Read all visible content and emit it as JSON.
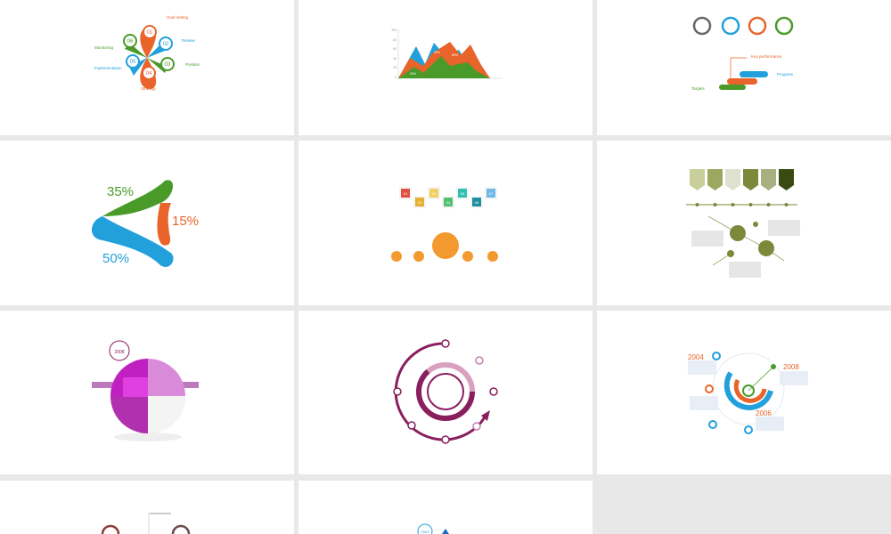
{
  "cards": [
    {
      "labels": [
        "Goal setting",
        "Review",
        "Position",
        "Strategy",
        "Implementation",
        "Monitoring"
      ],
      "nums": [
        "01",
        "02",
        "03",
        "04",
        "05",
        "06"
      ]
    },
    {
      "chart": {
        "ticks": [
          "100",
          "80",
          "60",
          "40",
          "20",
          "0"
        ],
        "labels": [
          "50%",
          "60%",
          "20%"
        ]
      }
    },
    {
      "labels": [
        "Key performance",
        "Progress",
        "Targets"
      ]
    },
    {
      "percents": [
        "35%",
        "15%",
        "50%"
      ]
    },
    {
      "nums": [
        "01",
        "02",
        "03",
        "04",
        "05",
        "06",
        "07"
      ]
    },
    {},
    {
      "year": "2008"
    },
    {},
    {
      "years": [
        "2004",
        "2008",
        "2006"
      ]
    },
    {},
    {
      "year": "2003"
    }
  ],
  "colors": {
    "orange": "#e8642a",
    "blue": "#22a0dc",
    "green": "#4a9a2a",
    "purple": "#8a1f5e",
    "magenta": "#c020c0",
    "olive": "#7a8a3a",
    "background": "#e8e8e8"
  }
}
